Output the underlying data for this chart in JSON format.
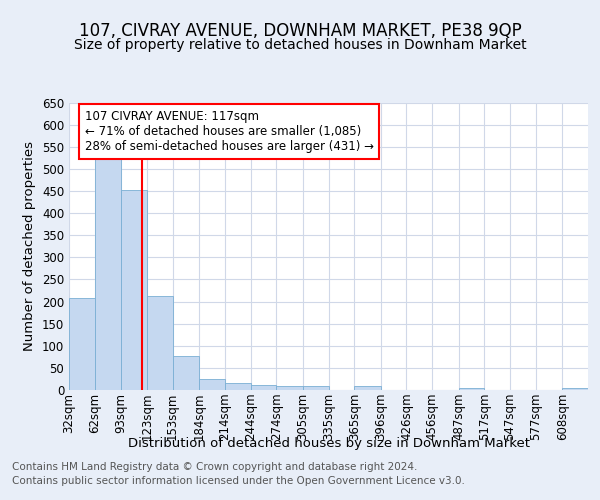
{
  "title1": "107, CIVRAY AVENUE, DOWNHAM MARKET, PE38 9QP",
  "title2": "Size of property relative to detached houses in Downham Market",
  "xlabel": "Distribution of detached houses by size in Downham Market",
  "ylabel": "Number of detached properties",
  "footer1": "Contains HM Land Registry data © Crown copyright and database right 2024.",
  "footer2": "Contains public sector information licensed under the Open Government Licence v3.0.",
  "annotation_line1": "107 CIVRAY AVENUE: 117sqm",
  "annotation_line2": "← 71% of detached houses are smaller (1,085)",
  "annotation_line3": "28% of semi-detached houses are larger (431) →",
  "bar_edges": [
    32,
    62,
    93,
    123,
    153,
    184,
    214,
    244,
    274,
    305,
    335,
    365,
    396,
    426,
    456,
    487,
    517,
    547,
    577,
    608,
    638
  ],
  "bar_heights": [
    207,
    533,
    452,
    212,
    78,
    26,
    15,
    12,
    8,
    8,
    0,
    8,
    0,
    0,
    0,
    5,
    0,
    0,
    0,
    5
  ],
  "bar_color": "#c5d8f0",
  "bar_edge_color": "#7aafd4",
  "red_line_x": 117,
  "ylim": [
    0,
    650
  ],
  "yticks": [
    0,
    50,
    100,
    150,
    200,
    250,
    300,
    350,
    400,
    450,
    500,
    550,
    600,
    650
  ],
  "bg_color": "#e8eef8",
  "plot_bg_color": "#ffffff",
  "grid_color": "#d0d8e8",
  "title_fontsize": 12,
  "subtitle_fontsize": 10,
  "axis_label_fontsize": 9.5,
  "tick_fontsize": 8.5,
  "footer_fontsize": 7.5,
  "annot_fontsize": 8.5
}
